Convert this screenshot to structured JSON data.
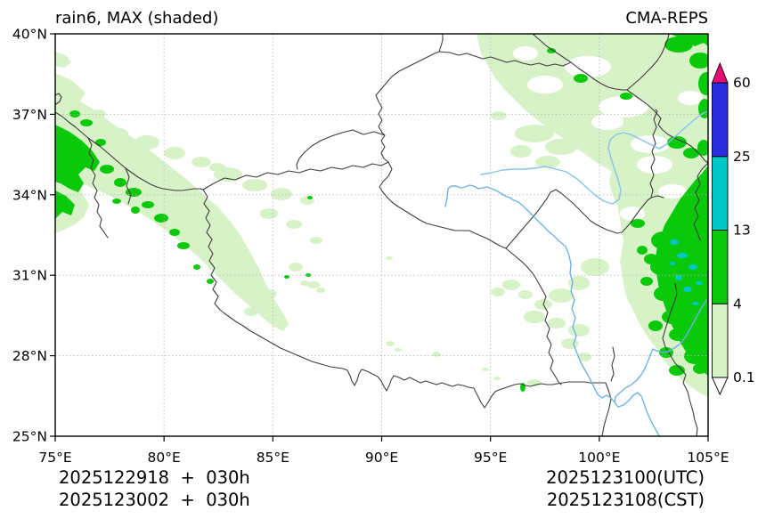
{
  "figure": {
    "title_left": "rain6, MAX (shaded)",
    "title_right": "CMA-REPS",
    "footer": {
      "init_utc": "2025122918  +  030h",
      "init_cst": "2025123002  +  030h",
      "valid_utc": "2025123100(UTC)",
      "valid_cst": "2025123108(CST)"
    }
  },
  "axes": {
    "x_ticks": [
      {
        "label": "75°E",
        "value": 75
      },
      {
        "label": "80°E",
        "value": 80
      },
      {
        "label": "85°E",
        "value": 85
      },
      {
        "label": "90°E",
        "value": 90
      },
      {
        "label": "95°E",
        "value": 95
      },
      {
        "label": "100°E",
        "value": 100
      },
      {
        "label": "105°E",
        "value": 105
      }
    ],
    "y_ticks": [
      {
        "label": "40°N",
        "value": 40
      },
      {
        "label": "37°N",
        "value": 37
      },
      {
        "label": "34°N",
        "value": 34
      },
      {
        "label": "31°N",
        "value": 31
      },
      {
        "label": "28°N",
        "value": 28
      },
      {
        "label": "25°N",
        "value": 25
      }
    ],
    "lon_range": [
      75,
      105
    ],
    "lat_range": [
      25,
      40
    ]
  },
  "colorbar": {
    "labels": [
      "0.1",
      "4",
      "13",
      "25",
      "60"
    ],
    "values": [
      0.1,
      4,
      13,
      25,
      60
    ],
    "segment_colors": [
      "#d8f2c8",
      "#0ac80a",
      "#00c8c8",
      "#2b2bdf"
    ],
    "over_color": "#e60d73",
    "under_color": "#ffffff"
  },
  "palette": {
    "light_rain": "#d8f2c8",
    "moderate_rain": "#0ac80a",
    "heavy_rain": "#00c8c8",
    "boundary": "#3d3d3d",
    "river": "#85c3ec",
    "grid": "#b9b9b9"
  },
  "chart_data": {
    "type": "heatmap",
    "title": "rain6, MAX (shaded)",
    "model": "CMA-REPS",
    "extent": {
      "lon": [
        75,
        105
      ],
      "lat": [
        25,
        40
      ]
    },
    "shading_levels_mm": [
      0.1,
      4,
      13,
      25,
      60
    ],
    "level_colors": {
      "0.1-4": "#d8f2c8",
      "4-13": "#0ac80a",
      "13-25": "#00c8c8",
      "25-60": "#2b2bdf",
      ">60": "#e60d73"
    },
    "precip_regions": [
      "NW-SE band along western Himalaya/Karakoram (75-82E, 30-37N) of 0.1-4 mm with embedded 4-13 mm cores near the west edge",
      "broad patchy 0.1-4 mm area over Qilian/Gansu in the northeast corner (93-105E, 36-40N) with small 4-13 mm cells",
      "large band along the eastern edge (100-105E, 26-38N): 0.1-4 mm with a strong 4-13 mm core and isolated 13-25 mm cells near 103-105E, 30-33N",
      "scattered trace amounts over southeast Tibet (95-100E, 30-33N)"
    ]
  }
}
